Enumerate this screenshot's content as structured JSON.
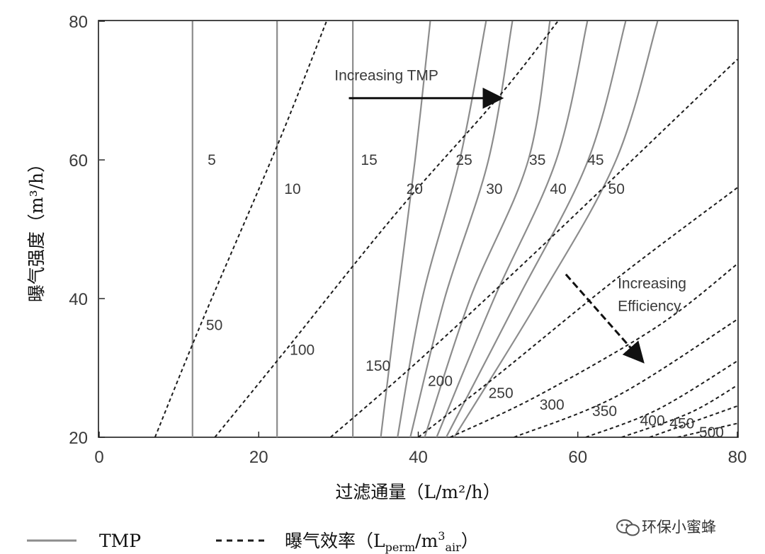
{
  "chart_data": {
    "type": "line",
    "title": "",
    "xlabel": "过滤通量（L/m²/h）",
    "ylabel": "曝气强度（m³/h）",
    "xlim": [
      0,
      80
    ],
    "ylim": [
      20,
      80
    ],
    "xticks": [
      "0",
      "20",
      "40",
      "60",
      "80"
    ],
    "yticks": [
      "20",
      "40",
      "60",
      "80"
    ],
    "grid": false,
    "legend_position": "bottom",
    "tmp_series": [
      {
        "name": "5",
        "points": [
          [
            11.7,
            20
          ],
          [
            11.7,
            80
          ]
        ]
      },
      {
        "name": "10",
        "points": [
          [
            22.3,
            20
          ],
          [
            22.3,
            80
          ]
        ]
      },
      {
        "name": "15",
        "points": [
          [
            31.8,
            20
          ],
          [
            31.8,
            80
          ]
        ]
      },
      {
        "name": "20",
        "points": [
          [
            35.3,
            20
          ],
          [
            37.4,
            40
          ],
          [
            39.6,
            60
          ],
          [
            41.5,
            80
          ]
        ]
      },
      {
        "name": "25",
        "points": [
          [
            37.4,
            20
          ],
          [
            40.5,
            40
          ],
          [
            45.2,
            60
          ],
          [
            48.5,
            80
          ]
        ]
      },
      {
        "name": "30",
        "points": [
          [
            39.0,
            20
          ],
          [
            43.3,
            40
          ],
          [
            48.8,
            60
          ],
          [
            51.8,
            80
          ]
        ]
      },
      {
        "name": "35",
        "points": [
          [
            40.8,
            20
          ],
          [
            46.5,
            40
          ],
          [
            53.8,
            60
          ],
          [
            56.5,
            80
          ]
        ]
      },
      {
        "name": "40",
        "points": [
          [
            42.3,
            20
          ],
          [
            49.5,
            40
          ],
          [
            57.3,
            60
          ],
          [
            61.2,
            80
          ]
        ]
      },
      {
        "name": "45",
        "points": [
          [
            43.5,
            20
          ],
          [
            52.5,
            40
          ],
          [
            61.3,
            60
          ],
          [
            66.0,
            80
          ]
        ]
      },
      {
        "name": "50",
        "points": [
          [
            44.5,
            20
          ],
          [
            55.2,
            40
          ],
          [
            64.8,
            60
          ],
          [
            70.0,
            80
          ]
        ]
      }
    ],
    "efficiency_series": [
      {
        "name": "50",
        "points": [
          [
            7.0,
            20
          ],
          [
            13.0,
            37
          ],
          [
            22.3,
            62
          ],
          [
            28.5,
            80
          ]
        ]
      },
      {
        "name": "100",
        "points": [
          [
            14.5,
            20
          ],
          [
            23.0,
            32
          ],
          [
            37.0,
            52
          ],
          [
            50.0,
            69
          ],
          [
            57.5,
            80
          ]
        ]
      },
      {
        "name": "150",
        "points": [
          [
            29.0,
            20
          ],
          [
            40.0,
            31
          ],
          [
            55.0,
            47
          ],
          [
            75.0,
            69
          ],
          [
            80.0,
            74.5
          ]
        ]
      },
      {
        "name": "200",
        "points": [
          [
            40.0,
            20
          ],
          [
            50.0,
            29
          ],
          [
            65.0,
            43
          ],
          [
            80.0,
            56
          ]
        ]
      },
      {
        "name": "250",
        "points": [
          [
            44.0,
            20
          ],
          [
            55.0,
            26
          ],
          [
            70.0,
            36
          ],
          [
            80.0,
            45
          ]
        ]
      },
      {
        "name": "300",
        "points": [
          [
            52.0,
            20
          ],
          [
            65.0,
            26
          ],
          [
            80.0,
            37
          ]
        ]
      },
      {
        "name": "350",
        "points": [
          [
            61.0,
            20
          ],
          [
            70.0,
            24
          ],
          [
            80.0,
            31
          ]
        ]
      },
      {
        "name": "400",
        "points": [
          [
            65.5,
            20
          ],
          [
            74.0,
            23.5
          ],
          [
            80.0,
            27.5
          ]
        ]
      },
      {
        "name": "450",
        "points": [
          [
            69.0,
            20
          ],
          [
            80.0,
            24.5
          ]
        ]
      },
      {
        "name": "500",
        "points": [
          [
            72.5,
            20
          ],
          [
            80.0,
            22
          ]
        ]
      }
    ],
    "tmp_labels": [
      {
        "text": "5",
        "x": 13.6,
        "y": 60.1
      },
      {
        "text": "10",
        "x": 23.2,
        "y": 55.9
      },
      {
        "text": "15",
        "x": 32.8,
        "y": 60.1
      },
      {
        "text": "20",
        "x": 38.5,
        "y": 55.9
      },
      {
        "text": "25",
        "x": 44.7,
        "y": 60.1
      },
      {
        "text": "30",
        "x": 48.5,
        "y": 55.9
      },
      {
        "text": "35",
        "x": 53.9,
        "y": 60.1
      },
      {
        "text": "40",
        "x": 56.5,
        "y": 55.9
      },
      {
        "text": "45",
        "x": 61.2,
        "y": 60.1
      },
      {
        "text": "50",
        "x": 63.8,
        "y": 55.9
      }
    ],
    "efficiency_labels": [
      {
        "text": "50",
        "x": 13.4,
        "y": 36.3
      },
      {
        "text": "100",
        "x": 23.9,
        "y": 32.7
      },
      {
        "text": "150",
        "x": 33.4,
        "y": 30.4
      },
      {
        "text": "200",
        "x": 41.2,
        "y": 28.2
      },
      {
        "text": "250",
        "x": 48.8,
        "y": 26.5
      },
      {
        "text": "300",
        "x": 55.2,
        "y": 24.8
      },
      {
        "text": "350",
        "x": 61.8,
        "y": 23.9
      },
      {
        "text": "400",
        "x": 67.8,
        "y": 22.5
      },
      {
        "text": "450",
        "x": 71.5,
        "y": 22.1
      },
      {
        "text": "500",
        "x": 75.2,
        "y": 20.8
      }
    ],
    "annotations": {
      "tmp": {
        "text": "Increasing TMP",
        "x": 29.5,
        "y": 71.5,
        "arrow_from": [
          31.3,
          68.9
        ],
        "arrow_to": [
          50.2,
          68.9
        ]
      },
      "efficiency_line1": {
        "text": "Increasing",
        "x": 65.0,
        "y": 41.5
      },
      "efficiency_line2": {
        "text": "Efficiency",
        "x": 65.0,
        "y": 38.2
      },
      "efficiency_arrow_from": [
        58.5,
        43.5
      ],
      "efficiency_arrow_to": [
        68.0,
        31.1
      ]
    },
    "legend": [
      {
        "label": "TMP",
        "style": "solid"
      },
      {
        "label_main": "曝气效率（L",
        "sub1": "perm",
        "mid": "/m",
        "sup": "3",
        "sub2": "air",
        "end": "）",
        "style": "dashed"
      }
    ],
    "colors": {
      "tmp_line": "#8c8c8c",
      "efficiency_line": "#1c1c1c",
      "text": "#3a3a3a",
      "axis": "#1a1a1a"
    }
  },
  "watermark": {
    "text": "环保小蜜蜂",
    "icon": "wechat-icon"
  }
}
